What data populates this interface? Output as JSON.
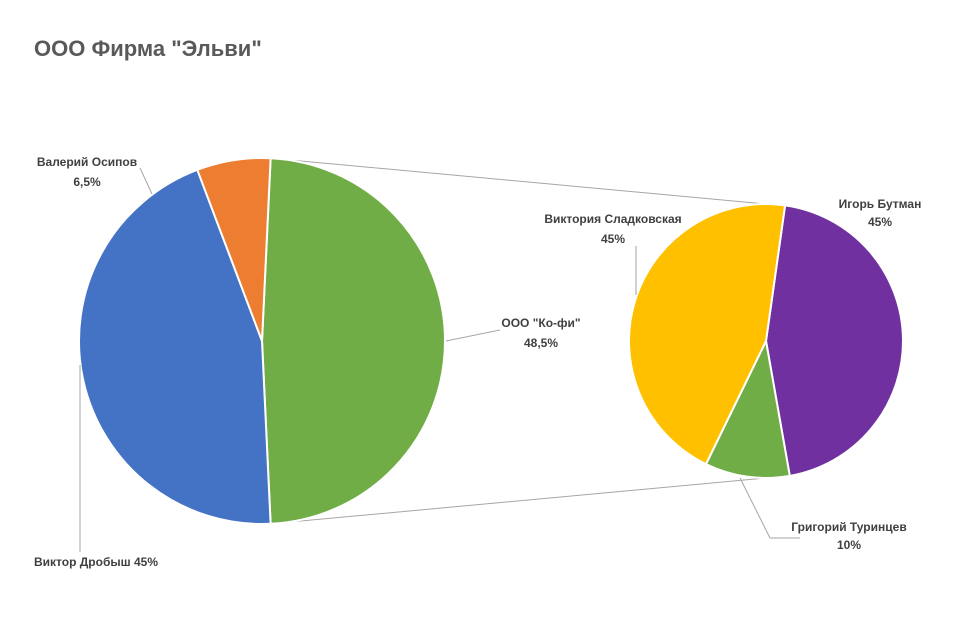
{
  "chart_data": {
    "type": "pie-of-pie",
    "title": "ООО Фирма \"Эльви\"",
    "categories": [
      "ООО \"Ко-фи\"",
      "Виктор Дробыш",
      "Валерий Осипов"
    ],
    "values": [
      48.5,
      45,
      6.5
    ],
    "value_labels": [
      "48,5%",
      "45%",
      "6,5%"
    ],
    "colors": [
      "#70ad47",
      "#4472c4",
      "#ed7d31"
    ],
    "secondary": {
      "categories": [
        "Игорь Бутман",
        "Григорий Туринцев",
        "Виктория Сладковская"
      ],
      "values": [
        45,
        10,
        45
      ],
      "value_labels": [
        "45%",
        "10%",
        "45%"
      ],
      "colors": [
        "#7030a0",
        "#70ad47",
        "#ffc000"
      ]
    }
  }
}
